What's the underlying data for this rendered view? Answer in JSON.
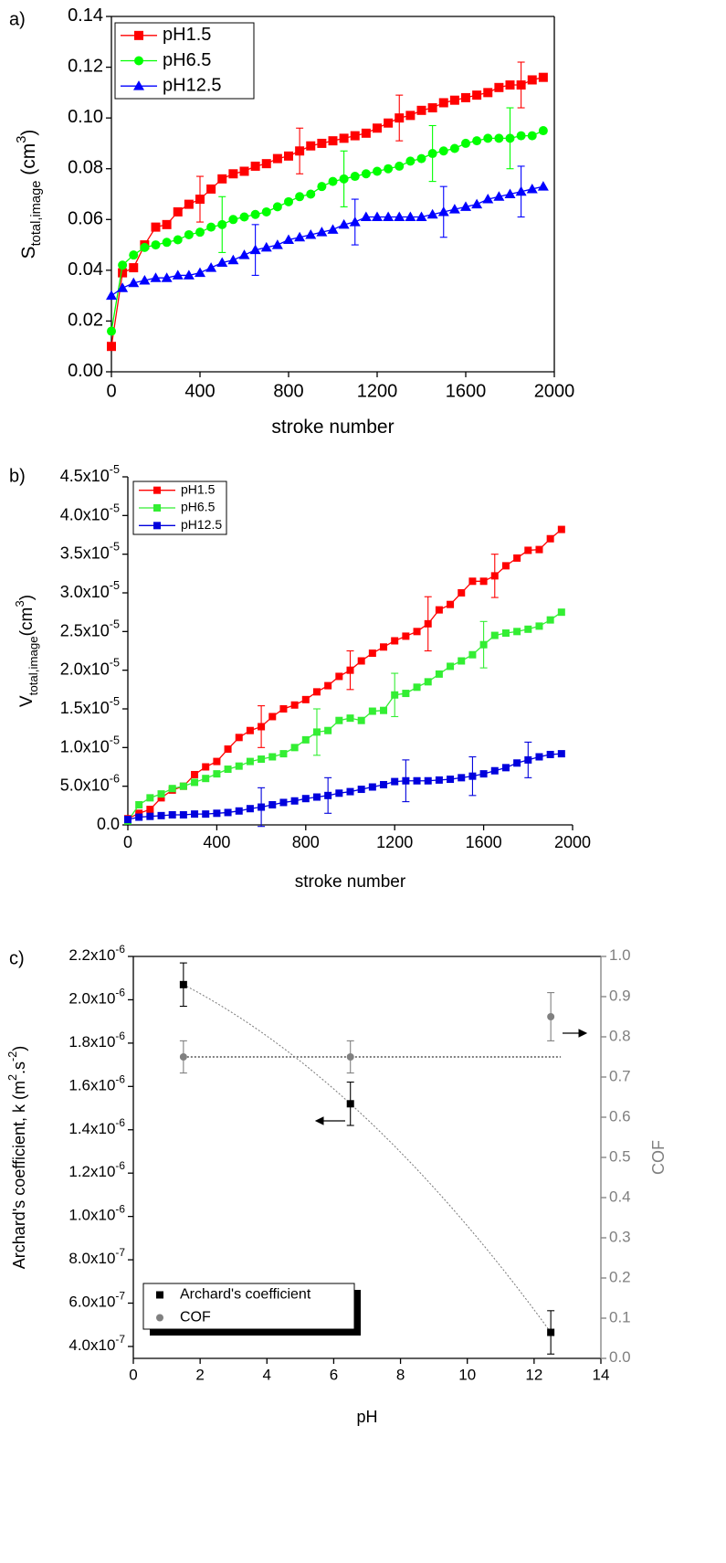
{
  "chart_data": [
    {
      "type": "line",
      "panel_label": "a)",
      "xlabel": [
        {
          "text": "stroke number"
        }
      ],
      "ylabel": [
        {
          "text": "S"
        },
        {
          "text": "total,image",
          "shift": "sub"
        },
        {
          "text": " (cm"
        },
        {
          "text": "3",
          "shift": "super"
        },
        {
          "text": ")"
        }
      ],
      "xlim": [
        0,
        2000
      ],
      "xticks": [
        0,
        400,
        800,
        1200,
        1600,
        2000
      ],
      "ylim": [
        0,
        0.14
      ],
      "yticks": [
        {
          "value": 0,
          "label": "0.00"
        },
        {
          "value": 0.02,
          "label": "0.02"
        },
        {
          "value": 0.04,
          "label": "0.04"
        },
        {
          "value": 0.06,
          "label": "0.06"
        },
        {
          "value": 0.08,
          "label": "0.08"
        },
        {
          "value": 0.1,
          "label": "0.10"
        },
        {
          "value": 0.12,
          "label": "0.12"
        },
        {
          "value": 0.14,
          "label": "0.14"
        }
      ],
      "frame": true,
      "legend": "upper left",
      "x": [
        0,
        50,
        100,
        150,
        200,
        250,
        300,
        350,
        400,
        450,
        500,
        550,
        600,
        650,
        700,
        750,
        800,
        850,
        900,
        950,
        1000,
        1050,
        1100,
        1150,
        1200,
        1250,
        1300,
        1350,
        1400,
        1450,
        1500,
        1550,
        1600,
        1650,
        1700,
        1750,
        1800,
        1850,
        1900,
        1950
      ],
      "series": [
        {
          "name": "pH1.5",
          "color": "#ff0000",
          "marker": "square",
          "line": true,
          "values": [
            0.01,
            0.039,
            0.041,
            0.05,
            0.057,
            0.058,
            0.063,
            0.066,
            0.068,
            0.072,
            0.076,
            0.078,
            0.079,
            0.081,
            0.082,
            0.084,
            0.085,
            0.087,
            0.089,
            0.09,
            0.091,
            0.092,
            0.093,
            0.094,
            0.096,
            0.098,
            0.1,
            0.101,
            0.103,
            0.104,
            0.106,
            0.107,
            0.108,
            0.109,
            0.11,
            0.112,
            0.113,
            0.113,
            0.115,
            0.116
          ],
          "errors": [
            null,
            null,
            null,
            null,
            null,
            null,
            null,
            null,
            0.009,
            null,
            null,
            null,
            null,
            null,
            null,
            null,
            null,
            0.009,
            null,
            null,
            null,
            null,
            null,
            null,
            null,
            null,
            0.009,
            null,
            null,
            null,
            null,
            null,
            null,
            null,
            null,
            null,
            null,
            0.009,
            null,
            null
          ]
        },
        {
          "name": "pH6.5",
          "color": "#00ff00",
          "marker": "circle",
          "line": true,
          "values": [
            0.016,
            0.042,
            0.046,
            0.049,
            0.05,
            0.051,
            0.052,
            0.054,
            0.055,
            0.057,
            0.058,
            0.06,
            0.061,
            0.062,
            0.063,
            0.065,
            0.067,
            0.069,
            0.07,
            0.073,
            0.075,
            0.076,
            0.077,
            0.078,
            0.079,
            0.08,
            0.081,
            0.083,
            0.084,
            0.086,
            0.087,
            0.088,
            0.09,
            0.091,
            0.092,
            0.092,
            0.092,
            0.093,
            0.093,
            0.095
          ],
          "errors": [
            null,
            null,
            null,
            null,
            null,
            null,
            null,
            null,
            null,
            null,
            0.011,
            null,
            null,
            null,
            null,
            null,
            null,
            null,
            null,
            null,
            null,
            0.011,
            null,
            null,
            null,
            null,
            null,
            null,
            null,
            0.011,
            null,
            null,
            null,
            null,
            null,
            null,
            0.012,
            null,
            null,
            null
          ]
        },
        {
          "name": "pH12.5",
          "color": "#0000ff",
          "marker": "triangle",
          "line": true,
          "values": [
            0.03,
            0.033,
            0.035,
            0.036,
            0.037,
            0.037,
            0.038,
            0.038,
            0.039,
            0.041,
            0.043,
            0.044,
            0.046,
            0.048,
            0.049,
            0.05,
            0.052,
            0.053,
            0.054,
            0.055,
            0.056,
            0.058,
            0.059,
            0.061,
            0.061,
            0.061,
            0.061,
            0.061,
            0.061,
            0.062,
            0.063,
            0.064,
            0.065,
            0.066,
            0.068,
            0.069,
            0.07,
            0.071,
            0.072,
            0.073
          ],
          "errors": [
            null,
            null,
            null,
            null,
            null,
            null,
            null,
            null,
            null,
            null,
            null,
            null,
            null,
            0.01,
            null,
            null,
            null,
            null,
            null,
            null,
            null,
            null,
            0.009,
            null,
            null,
            null,
            null,
            null,
            null,
            null,
            0.01,
            null,
            null,
            null,
            null,
            null,
            null,
            0.01,
            null,
            null
          ]
        }
      ]
    },
    {
      "type": "line",
      "panel_label": "b)",
      "xlabel": [
        {
          "text": "stroke number"
        }
      ],
      "ylabel": [
        {
          "text": "V"
        },
        {
          "text": "total,image",
          "shift": "sub"
        },
        {
          "text": "(cm"
        },
        {
          "text": "3",
          "shift": "super"
        },
        {
          "text": ")"
        }
      ],
      "xlim": [
        0,
        2000
      ],
      "xticks": [
        0,
        400,
        800,
        1200,
        1600,
        2000
      ],
      "ylim": [
        0,
        4.5e-05
      ],
      "yticks": [
        {
          "value": 0,
          "label": "0.0"
        },
        {
          "value": 5e-06,
          "label": "5.0x10",
          "exp": "-6"
        },
        {
          "value": 1e-05,
          "label": "1.0x10",
          "exp": "-5"
        },
        {
          "value": 1.5e-05,
          "label": "1.5x10",
          "exp": "-5"
        },
        {
          "value": 2e-05,
          "label": "2.0x10",
          "exp": "-5"
        },
        {
          "value": 2.5e-05,
          "label": "2.5x10",
          "exp": "-5"
        },
        {
          "value": 3e-05,
          "label": "3.0x10",
          "exp": "-5"
        },
        {
          "value": 3.5e-05,
          "label": "3.5x10",
          "exp": "-5"
        },
        {
          "value": 4e-05,
          "label": "4.0x10",
          "exp": "-5"
        },
        {
          "value": 4.5e-05,
          "label": "4.5x10",
          "exp": "-5"
        }
      ],
      "frame": false,
      "legend": "upper left",
      "x": [
        0,
        50,
        100,
        150,
        200,
        250,
        300,
        350,
        400,
        450,
        500,
        550,
        600,
        650,
        700,
        750,
        800,
        850,
        900,
        950,
        1000,
        1050,
        1100,
        1150,
        1200,
        1250,
        1300,
        1350,
        1400,
        1450,
        1500,
        1550,
        1600,
        1650,
        1700,
        1750,
        1800,
        1850,
        1900,
        1950
      ],
      "series": [
        {
          "name": "pH1.5",
          "color": "#ff0000",
          "marker": "square",
          "line": true,
          "values": [
            8e-07,
            1.5e-06,
            2e-06,
            3.5e-06,
            4.5e-06,
            5e-06,
            6.5e-06,
            7.5e-06,
            8.2e-06,
            9.8e-06,
            1.13e-05,
            1.22e-05,
            1.27e-05,
            1.4e-05,
            1.5e-05,
            1.55e-05,
            1.62e-05,
            1.72e-05,
            1.8e-05,
            1.92e-05,
            2e-05,
            2.12e-05,
            2.22e-05,
            2.3e-05,
            2.38e-05,
            2.44e-05,
            2.5e-05,
            2.6e-05,
            2.78e-05,
            2.85e-05,
            3e-05,
            3.15e-05,
            3.15e-05,
            3.22e-05,
            3.35e-05,
            3.45e-05,
            3.55e-05,
            3.56e-05,
            3.7e-05,
            3.82e-05
          ],
          "errors": [
            null,
            null,
            null,
            null,
            null,
            null,
            null,
            null,
            null,
            null,
            null,
            null,
            2.7e-06,
            null,
            null,
            null,
            null,
            null,
            null,
            null,
            2.5e-06,
            null,
            null,
            null,
            null,
            null,
            null,
            3.5e-06,
            null,
            null,
            null,
            null,
            null,
            2.8e-06,
            null,
            null,
            null,
            null,
            null,
            null
          ]
        },
        {
          "name": "pH6.5",
          "color": "#33ee33",
          "marker": "square",
          "line": true,
          "values": [
            5e-07,
            2.6e-06,
            3.5e-06,
            4e-06,
            4.7e-06,
            5e-06,
            5.5e-06,
            6e-06,
            6.6e-06,
            7.2e-06,
            7.6e-06,
            8.2e-06,
            8.5e-06,
            8.8e-06,
            9.2e-06,
            1e-05,
            1.1e-05,
            1.2e-05,
            1.22e-05,
            1.35e-05,
            1.38e-05,
            1.35e-05,
            1.47e-05,
            1.48e-05,
            1.68e-05,
            1.7e-05,
            1.78e-05,
            1.85e-05,
            1.95e-05,
            2.05e-05,
            2.12e-05,
            2.2e-05,
            2.33e-05,
            2.45e-05,
            2.48e-05,
            2.5e-05,
            2.53e-05,
            2.57e-05,
            2.65e-05,
            2.75e-05
          ],
          "errors": [
            null,
            null,
            null,
            null,
            null,
            null,
            null,
            null,
            null,
            null,
            null,
            null,
            null,
            null,
            null,
            null,
            null,
            3e-06,
            null,
            null,
            null,
            null,
            null,
            null,
            2.8e-06,
            null,
            null,
            null,
            null,
            null,
            null,
            null,
            3e-06,
            null,
            null,
            null,
            null,
            null,
            null,
            null
          ]
        },
        {
          "name": "pH12.5",
          "color": "#0000dd",
          "marker": "square",
          "line": true,
          "values": [
            7e-07,
            1e-06,
            1.1e-06,
            1.2e-06,
            1.3e-06,
            1.3e-06,
            1.4e-06,
            1.4e-06,
            1.5e-06,
            1.6e-06,
            1.8e-06,
            2.1e-06,
            2.3e-06,
            2.6e-06,
            2.9e-06,
            3.1e-06,
            3.4e-06,
            3.6e-06,
            3.8e-06,
            4.1e-06,
            4.3e-06,
            4.6e-06,
            4.9e-06,
            5.2e-06,
            5.6e-06,
            5.7e-06,
            5.7e-06,
            5.7e-06,
            5.8e-06,
            5.9e-06,
            6.1e-06,
            6.3e-06,
            6.6e-06,
            7e-06,
            7.4e-06,
            8e-06,
            8.4e-06,
            8.8e-06,
            9.1e-06,
            9.2e-06
          ],
          "errors": [
            null,
            null,
            null,
            null,
            null,
            null,
            null,
            null,
            null,
            null,
            null,
            null,
            2.5e-06,
            null,
            null,
            null,
            null,
            null,
            2.3e-06,
            null,
            null,
            null,
            null,
            null,
            null,
            2.7e-06,
            null,
            null,
            null,
            null,
            null,
            2.5e-06,
            null,
            null,
            null,
            null,
            2.3e-06,
            null,
            null,
            null
          ]
        }
      ]
    },
    {
      "type": "scatter",
      "panel_label": "c)",
      "xlabel": [
        {
          "text": "pH"
        }
      ],
      "ylabel": [
        {
          "text": "Archard's coefficient, k (m"
        },
        {
          "text": "2",
          "shift": "super"
        },
        {
          "text": ".s"
        },
        {
          "text": "-2",
          "shift": "super"
        },
        {
          "text": ")"
        }
      ],
      "y2label": [
        {
          "text": "COF"
        }
      ],
      "y2color": "#808080",
      "xlim": [
        0,
        14
      ],
      "xticks": [
        0,
        2,
        4,
        6,
        8,
        10,
        12,
        14
      ],
      "ylim": [
        3.45e-07,
        2.2e-06
      ],
      "yticks": [
        {
          "value": 4e-07,
          "label": "4.0x10",
          "exp": "-7"
        },
        {
          "value": 6e-07,
          "label": "6.0x10",
          "exp": "-7"
        },
        {
          "value": 8e-07,
          "label": "8.0x10",
          "exp": "-7"
        },
        {
          "value": 1e-06,
          "label": "1.0x10",
          "exp": "-6"
        },
        {
          "value": 1.2e-06,
          "label": "1.2x10",
          "exp": "-6"
        },
        {
          "value": 1.4e-06,
          "label": "1.4x10",
          "exp": "-6"
        },
        {
          "value": 1.6e-06,
          "label": "1.6x10",
          "exp": "-6"
        },
        {
          "value": 1.8e-06,
          "label": "1.8x10",
          "exp": "-6"
        },
        {
          "value": 2e-06,
          "label": "2.0x10",
          "exp": "-6"
        },
        {
          "value": 2.2e-06,
          "label": "2.2x10",
          "exp": "-6"
        }
      ],
      "y2lim": [
        0,
        1
      ],
      "y2ticks": [
        {
          "value": 0,
          "label": "0.0"
        },
        0.1,
        0.2,
        0.3,
        0.4,
        0.5,
        0.6,
        0.7,
        0.8,
        0.9,
        {
          "value": 1,
          "label": "1.0"
        }
      ],
      "frame": true,
      "legend": "lower left",
      "x": [
        1.5,
        6.5,
        12.5
      ],
      "series": [
        {
          "name": "Archard's coefficient",
          "color": "#000000",
          "marker": "square",
          "line": false,
          "fit": true,
          "values": [
            2.07e-06,
            1.52e-06,
            4.65e-07
          ],
          "errors": [
            1e-07,
            1e-07,
            1e-07
          ]
        },
        {
          "name": "COF",
          "color": "#808080",
          "marker": "circle",
          "line": false,
          "axis": "y2",
          "values": [
            0.75,
            0.75,
            0.85
          ],
          "errors": [
            0.04,
            0.04,
            0.06
          ]
        }
      ],
      "reference_lines": [
        {
          "axis": "y2",
          "y": 0.75,
          "x": [
            1.5,
            12.8
          ]
        }
      ]
    }
  ]
}
